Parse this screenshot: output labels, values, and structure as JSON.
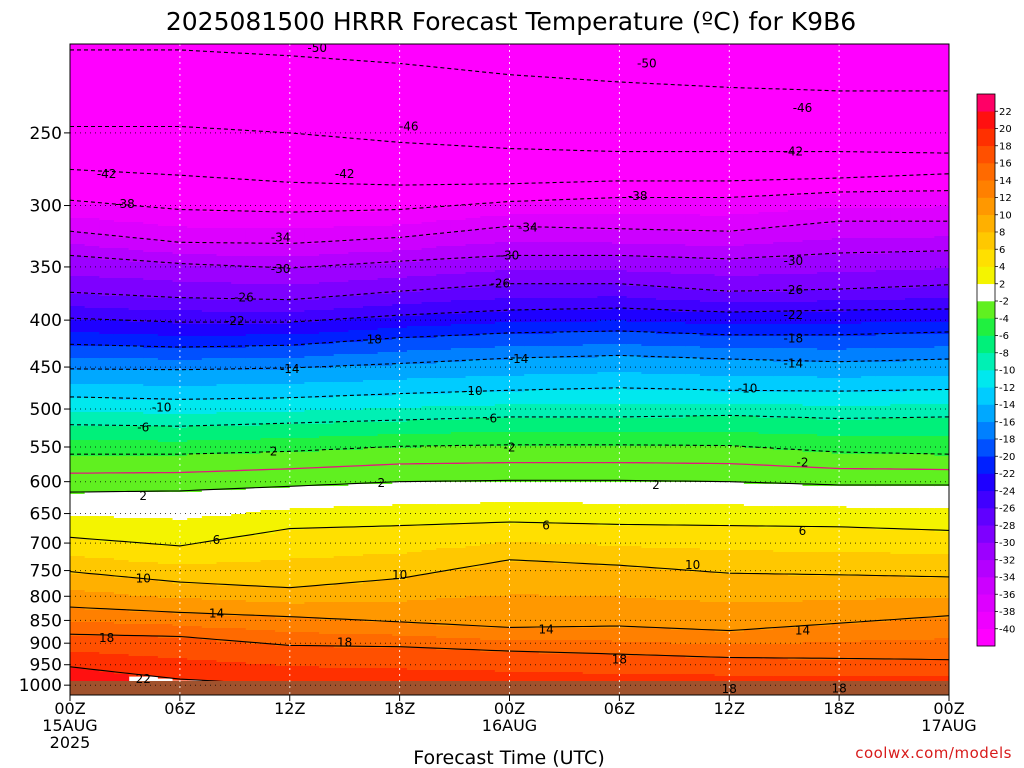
{
  "chart_data": {
    "type": "heatmap",
    "title": "2025081500 HRRR Forecast Temperature (ºC) for K9B6",
    "xlabel": "Forecast Time (UTC)",
    "ylabel": "",
    "x_ticks": [
      {
        "hour": 0,
        "lines": [
          "00Z",
          "15AUG",
          "2025"
        ]
      },
      {
        "hour": 6,
        "lines": [
          "06Z"
        ]
      },
      {
        "hour": 12,
        "lines": [
          "12Z"
        ]
      },
      {
        "hour": 18,
        "lines": [
          "18Z"
        ]
      },
      {
        "hour": 24,
        "lines": [
          "00Z",
          "16AUG"
        ]
      },
      {
        "hour": 30,
        "lines": [
          "06Z"
        ]
      },
      {
        "hour": 36,
        "lines": [
          "12Z"
        ]
      },
      {
        "hour": 42,
        "lines": [
          "18Z"
        ]
      },
      {
        "hour": 48,
        "lines": [
          "00Z",
          "17AUG"
        ]
      }
    ],
    "xlim": [
      0,
      48
    ],
    "y_ticks": [
      250,
      300,
      350,
      400,
      450,
      500,
      550,
      600,
      650,
      700,
      750,
      800,
      850,
      900,
      950,
      1000
    ],
    "ylim": [
      1025,
      200
    ],
    "y_scale": "log",
    "grid": true,
    "colorbar": {
      "levels": [
        -42,
        -40,
        -38,
        -36,
        -34,
        -32,
        -30,
        -28,
        -26,
        -24,
        -22,
        -20,
        -18,
        -16,
        -14,
        -12,
        -10,
        -8,
        -6,
        -4,
        -2,
        2,
        4,
        6,
        8,
        10,
        12,
        14,
        16,
        18,
        20,
        22,
        24
      ],
      "labels": [
        "-40",
        "-38",
        "-36",
        "-34",
        "-32",
        "-30",
        "-28",
        "-26",
        "-24",
        "-22",
        "-20",
        "-18",
        "-16",
        "-14",
        "-12",
        "-10",
        "-8",
        "-6",
        "-4",
        "-2",
        "2",
        "4",
        "6",
        "8",
        "10",
        "12",
        "14",
        "16",
        "18",
        "20",
        "22"
      ],
      "colors": [
        "#ff00ff",
        "#ee00ff",
        "#dd00ff",
        "#cc00ff",
        "#b400ff",
        "#9c00ff",
        "#7e00ff",
        "#6000ff",
        "#4000ff",
        "#1e00ff",
        "#0020ff",
        "#0050ff",
        "#0080ff",
        "#00a8ff",
        "#00ccff",
        "#00e8ee",
        "#00f0b4",
        "#00f07a",
        "#20f040",
        "#60f020",
        "#ffffff",
        "#f4f400",
        "#ffe000",
        "#ffc800",
        "#ffb000",
        "#ff9800",
        "#ff8000",
        "#ff6a00",
        "#ff5000",
        "#ff3000",
        "#ff1010",
        "#ff0066"
      ]
    },
    "series": [
      {
        "contour": -50,
        "p": [
          203,
          203,
          206,
          210,
          216,
          220,
          223,
          225,
          225
        ]
      },
      {
        "contour": -46,
        "p": [
          246,
          246,
          250,
          256,
          260,
          262,
          262,
          262,
          263
        ]
      },
      {
        "contour": -42,
        "p": [
          274,
          278,
          283,
          285,
          284,
          282,
          282,
          280,
          277
        ]
      },
      {
        "contour": -38,
        "p": [
          296,
          303,
          305,
          303,
          297,
          294,
          294,
          290,
          289
        ]
      },
      {
        "contour": -34,
        "p": [
          320,
          329,
          330,
          325,
          316,
          318,
          320,
          312,
          312
        ]
      },
      {
        "contour": -30,
        "p": [
          340,
          347,
          351,
          345,
          340,
          340,
          343,
          338,
          336
        ]
      },
      {
        "contour": -26,
        "p": [
          373,
          378,
          380,
          372,
          365,
          365,
          372,
          370,
          366
        ]
      },
      {
        "contour": -22,
        "p": [
          398,
          402,
          402,
          395,
          390,
          388,
          392,
          390,
          389
        ]
      },
      {
        "contour": -18,
        "p": [
          425,
          428,
          426,
          418,
          413,
          411,
          415,
          415,
          412
        ]
      },
      {
        "contour": -14,
        "p": [
          452,
          453,
          451,
          446,
          440,
          437,
          441,
          444,
          441
        ]
      },
      {
        "contour": -10,
        "p": [
          485,
          488,
          486,
          481,
          477,
          474,
          477,
          478,
          476
        ]
      },
      {
        "contour": -6,
        "p": [
          520,
          522,
          518,
          514,
          510,
          510,
          508,
          512,
          510
        ]
      },
      {
        "contour": -2,
        "p": [
          560,
          560,
          556,
          549,
          547,
          547,
          548,
          557,
          560
        ]
      },
      {
        "contour": 2,
        "p": [
          616,
          614,
          607,
          600,
          598,
          598,
          600,
          605,
          605
        ]
      },
      {
        "contour": 6,
        "p": [
          690,
          705,
          675,
          670,
          664,
          668,
          670,
          672,
          678
        ]
      },
      {
        "contour": 10,
        "p": [
          752,
          772,
          783,
          765,
          730,
          740,
          755,
          758,
          762
        ]
      },
      {
        "contour": 14,
        "p": [
          822,
          833,
          842,
          853,
          865,
          862,
          872,
          856,
          840
        ]
      },
      {
        "contour": 18,
        "p": [
          880,
          885,
          905,
          908,
          918,
          925,
          933,
          935,
          938
        ]
      },
      {
        "contour": 22,
        "p": [
          955,
          985,
          1000,
          1010,
          1012,
          1015,
          1015,
          1012,
          1010
        ]
      }
    ],
    "contour_labels": [
      {
        "text": "-50",
        "x": 13.5,
        "p": 202
      },
      {
        "text": "-50",
        "x": 31.5,
        "p": 210
      },
      {
        "text": "-46",
        "x": 18.5,
        "p": 246
      },
      {
        "text": "-46",
        "x": 40.0,
        "p": 235
      },
      {
        "text": "-42",
        "x": 2.0,
        "p": 277
      },
      {
        "text": "-42",
        "x": 15.0,
        "p": 277
      },
      {
        "text": "-42",
        "x": 39.5,
        "p": 262
      },
      {
        "text": "-38",
        "x": 3.0,
        "p": 299
      },
      {
        "text": "-38",
        "x": 31.0,
        "p": 293
      },
      {
        "text": "-34",
        "x": 11.5,
        "p": 325
      },
      {
        "text": "-34",
        "x": 25.0,
        "p": 317
      },
      {
        "text": "-30",
        "x": 11.5,
        "p": 352
      },
      {
        "text": "-30",
        "x": 24.0,
        "p": 340
      },
      {
        "text": "-30",
        "x": 39.5,
        "p": 345
      },
      {
        "text": "-26",
        "x": 9.5,
        "p": 378
      },
      {
        "text": "-26",
        "x": 23.5,
        "p": 365
      },
      {
        "text": "-26",
        "x": 39.5,
        "p": 371
      },
      {
        "text": "-22",
        "x": 9.0,
        "p": 401
      },
      {
        "text": "-22",
        "x": 39.5,
        "p": 395
      },
      {
        "text": "-18",
        "x": 16.5,
        "p": 420
      },
      {
        "text": "-18",
        "x": 39.5,
        "p": 419
      },
      {
        "text": "-14",
        "x": 12.0,
        "p": 452
      },
      {
        "text": "-14",
        "x": 24.5,
        "p": 441
      },
      {
        "text": "-14",
        "x": 39.5,
        "p": 446
      },
      {
        "text": "-10",
        "x": 5.0,
        "p": 498
      },
      {
        "text": "-10",
        "x": 22.0,
        "p": 478
      },
      {
        "text": "-10",
        "x": 37.0,
        "p": 475
      },
      {
        "text": "-6",
        "x": 4.0,
        "p": 524
      },
      {
        "text": "-6",
        "x": 23.0,
        "p": 512
      },
      {
        "text": "-2",
        "x": 11.0,
        "p": 556
      },
      {
        "text": "-2",
        "x": 24.0,
        "p": 551
      },
      {
        "text": "-2",
        "x": 40.0,
        "p": 572
      },
      {
        "text": "2",
        "x": 4.0,
        "p": 622
      },
      {
        "text": "2",
        "x": 17.0,
        "p": 602
      },
      {
        "text": "2",
        "x": 32.0,
        "p": 605
      },
      {
        "text": "6",
        "x": 8.0,
        "p": 695
      },
      {
        "text": "6",
        "x": 26.0,
        "p": 670
      },
      {
        "text": "6",
        "x": 40.0,
        "p": 679
      },
      {
        "text": "10",
        "x": 4.0,
        "p": 765
      },
      {
        "text": "10",
        "x": 18.0,
        "p": 758
      },
      {
        "text": "10",
        "x": 34.0,
        "p": 740
      },
      {
        "text": "14",
        "x": 8.0,
        "p": 835
      },
      {
        "text": "14",
        "x": 26.0,
        "p": 870
      },
      {
        "text": "14",
        "x": 40.0,
        "p": 872
      },
      {
        "text": "18",
        "x": 2.0,
        "p": 888
      },
      {
        "text": "18",
        "x": 15.0,
        "p": 898
      },
      {
        "text": "18",
        "x": 30.0,
        "p": 938
      },
      {
        "text": "18",
        "x": 36.0,
        "p": 1010
      },
      {
        "text": "18",
        "x": 42.0,
        "p": 1008
      },
      {
        "text": "22",
        "x": 4.0,
        "p": 985
      }
    ]
  },
  "credit": "coolwx.com/models"
}
